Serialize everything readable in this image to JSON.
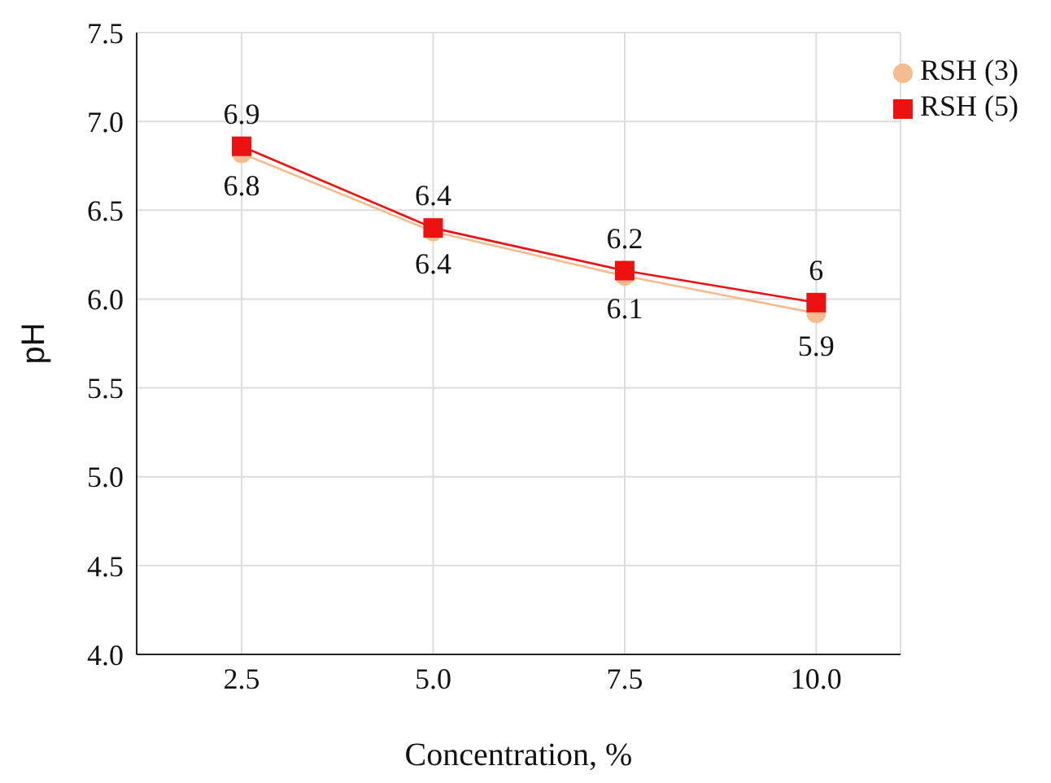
{
  "chart_data": {
    "type": "line",
    "xlabel": "Concentration, %",
    "ylabel": "pH",
    "x": [
      2.5,
      5.0,
      7.5,
      10.0
    ],
    "xlim": [
      1.13,
      11.1
    ],
    "xticks": [
      {
        "value": 2.5,
        "label": "2.5"
      },
      {
        "value": 5,
        "label": "5.0"
      },
      {
        "value": 7.5,
        "label": "7.5"
      },
      {
        "value": 10,
        "label": "10.0"
      }
    ],
    "ylim": [
      4,
      7.5
    ],
    "yticks": [
      {
        "value": 4,
        "label": "4.0"
      },
      {
        "value": 4.5,
        "label": "4.5"
      },
      {
        "value": 5,
        "label": "5.0"
      },
      {
        "value": 5.5,
        "label": "5.5"
      },
      {
        "value": 6,
        "label": "6.0"
      },
      {
        "value": 6.5,
        "label": "6.5"
      },
      {
        "value": 7,
        "label": "7.0"
      },
      {
        "value": 7.5,
        "label": "7.5"
      }
    ],
    "grid": true,
    "legend": "top right",
    "series": [
      {
        "name": "RSH (3)",
        "color": "#f5bc8f",
        "marker": "circle",
        "values": [
          6.82,
          6.38,
          6.13,
          5.92
        ],
        "value_labels": [
          "6.8",
          "6.4",
          "6.1",
          "5.9"
        ]
      },
      {
        "name": "RSH (5)",
        "color": "#ee1111",
        "marker": "square",
        "values": [
          6.86,
          6.4,
          6.16,
          5.98
        ],
        "value_labels": [
          "6.9",
          "6.4",
          "6.2",
          "6"
        ]
      }
    ]
  }
}
